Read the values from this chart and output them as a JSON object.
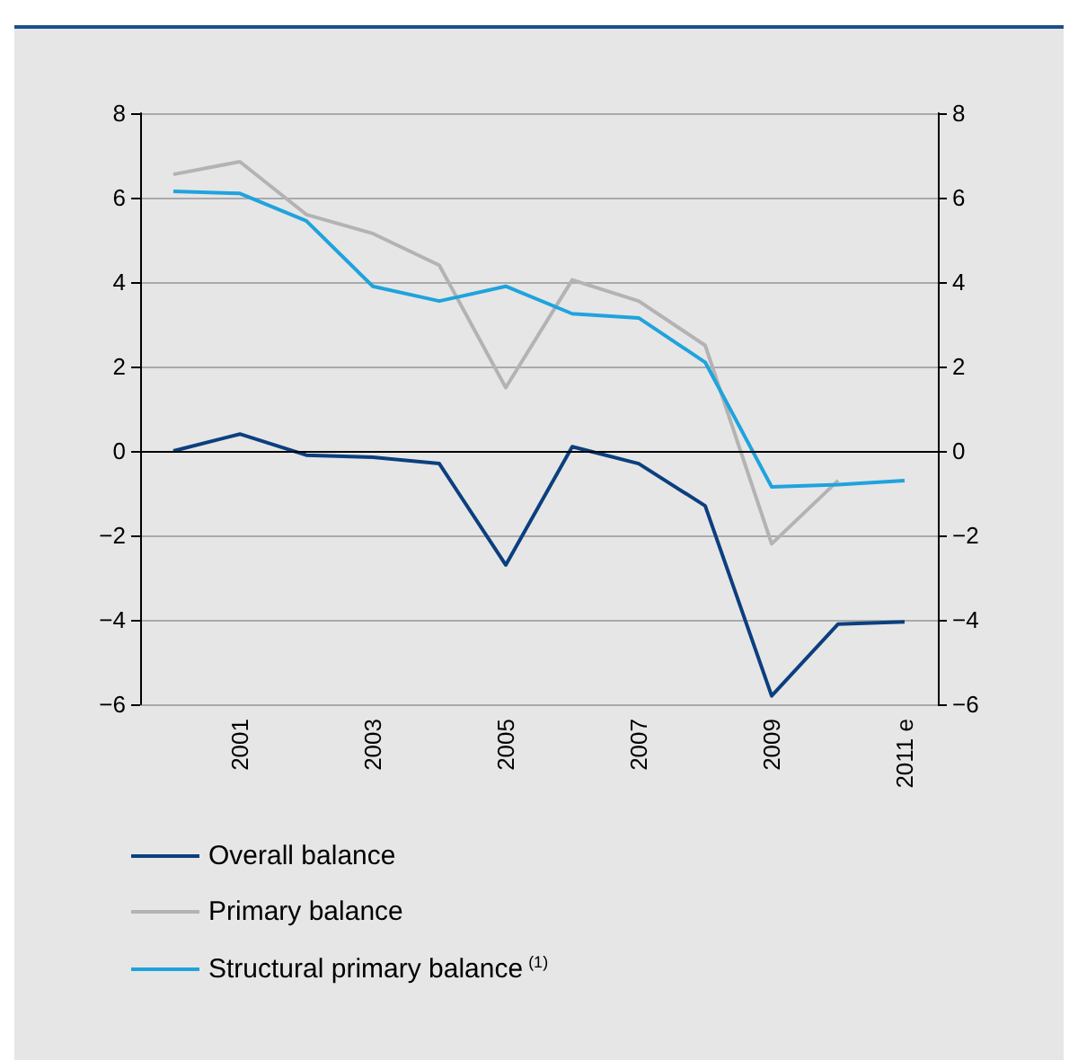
{
  "chart_data": {
    "type": "line",
    "categories": [
      null,
      "2001",
      null,
      "2003",
      null,
      "2005",
      null,
      "2007",
      null,
      "2009",
      null,
      "2011 e"
    ],
    "series": [
      {
        "name": "Overall balance",
        "color": "#0b3f7f",
        "values": [
          0,
          0.4,
          -0.1,
          -0.15,
          -0.3,
          -2.7,
          0.1,
          -0.3,
          -1.3,
          -5.8,
          -4.1,
          -4.05
        ]
      },
      {
        "name": "Primary balance",
        "color": "#b3b3b3",
        "values": [
          6.55,
          6.85,
          5.6,
          5.15,
          4.4,
          1.5,
          4.05,
          3.55,
          2.5,
          -2.2,
          -0.7,
          null
        ]
      },
      {
        "name": "Structural primary balance$^{(1)}$",
        "color": "#1fa3dd",
        "values": [
          6.15,
          6.1,
          5.45,
          3.9,
          3.55,
          3.9,
          3.25,
          3.15,
          2.1,
          -0.85,
          -0.8,
          -0.7
        ]
      }
    ],
    "ylim": [
      -6,
      8
    ],
    "yticks": [
      -6,
      -4,
      -2,
      0,
      2,
      4,
      6,
      8
    ],
    "y2lim": [
      -6,
      8
    ],
    "y2ticks": [
      -6,
      -4,
      -2,
      0,
      2,
      4,
      6,
      8
    ],
    "ref_lines": [
      {
        "axis": "y",
        "value": 0,
        "color": "#000000"
      }
    ],
    "grid": "y",
    "legend": "bottom",
    "marker": "none",
    "line_style": "solid"
  }
}
